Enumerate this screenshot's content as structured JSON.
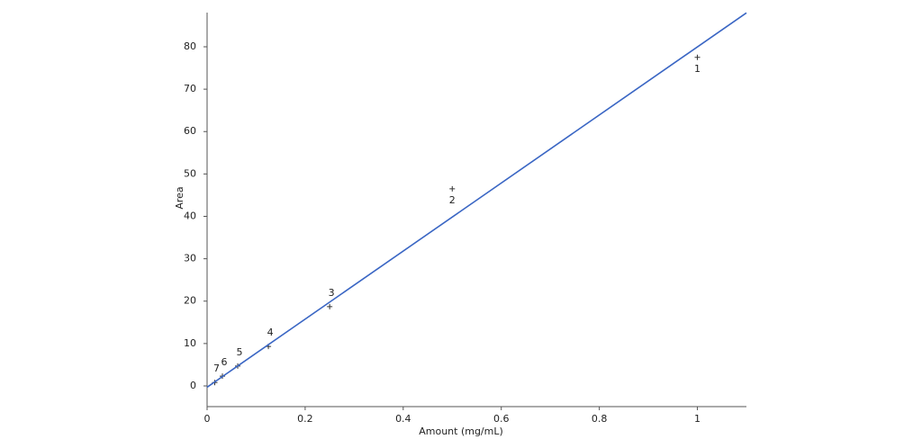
{
  "chart_data": {
    "type": "scatter",
    "x_label": "Amount (mg/mL)",
    "y_label": "Area",
    "xlim": [
      0,
      1.1
    ],
    "ylim": [
      -5,
      88
    ],
    "xticks": [
      0,
      0.2,
      0.4,
      0.6,
      0.8,
      1
    ],
    "yticks": [
      0,
      10,
      20,
      30,
      40,
      50,
      60,
      70,
      80
    ],
    "series": [
      {
        "type": "scatter",
        "color": "#333333",
        "x": [
          1,
          0.5,
          0.25,
          0.125,
          0.0625,
          0.03125,
          0.015625
        ],
        "values": [
          77.5,
          46.5,
          18.7,
          9.3,
          4.7,
          2.3,
          0.8
        ],
        "labels": [
          "1",
          "2",
          "3",
          "4",
          "5",
          "6",
          "7"
        ]
      },
      {
        "type": "line",
        "color": "#3a66c4",
        "x": [
          0,
          1.1
        ],
        "values": [
          -0.3,
          88
        ]
      }
    ]
  }
}
